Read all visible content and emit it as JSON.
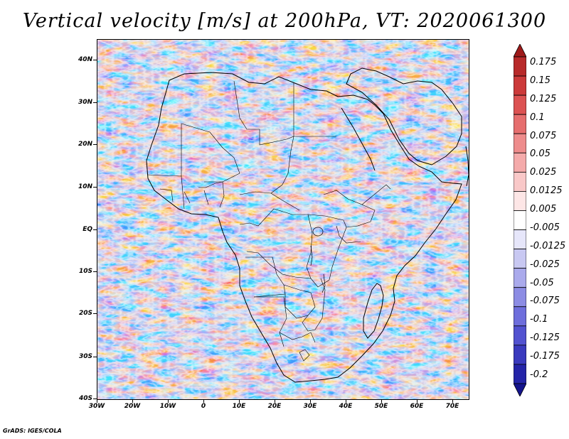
{
  "title": "Vertical velocity [m/s] at 200hPa, VT: 2020061300",
  "map": {
    "variable": "Vertical velocity",
    "units": "m/s",
    "level": "200hPa",
    "valid_time": "2020061300",
    "lon_labels": [
      "30W",
      "20W",
      "10W",
      "0",
      "10E",
      "20E",
      "30E",
      "40E",
      "50E",
      "60E",
      "70E"
    ],
    "lat_labels": [
      "40N",
      "30N",
      "20N",
      "10N",
      "EQ",
      "10S",
      "20S",
      "30S",
      "40S"
    ],
    "lon_range": [
      -30,
      75
    ],
    "lat_range": [
      -40,
      45
    ]
  },
  "colorbar": {
    "labels": [
      "0.175",
      "0.15",
      "0.125",
      "0.1",
      "0.075",
      "0.05",
      "0.025",
      "0.0125",
      "0.005",
      "-0.005",
      "-0.0125",
      "-0.025",
      "-0.05",
      "-0.075",
      "-0.1",
      "-0.125",
      "-0.175",
      "-0.2"
    ],
    "colors": [
      "#9e1a1a",
      "#b82a2a",
      "#cc3a3a",
      "#dc5252",
      "#e66e6e",
      "#ee8c8c",
      "#f4aaaa",
      "#f9c8c8",
      "#fde6e6",
      "#ffffff",
      "#e6e6fa",
      "#c8c8f2",
      "#aaaaec",
      "#8c8ce4",
      "#6e6edc",
      "#5252d0",
      "#3a3abe",
      "#2424a8",
      "#14148c"
    ]
  },
  "credit": "GrADS: IGES/COLA"
}
